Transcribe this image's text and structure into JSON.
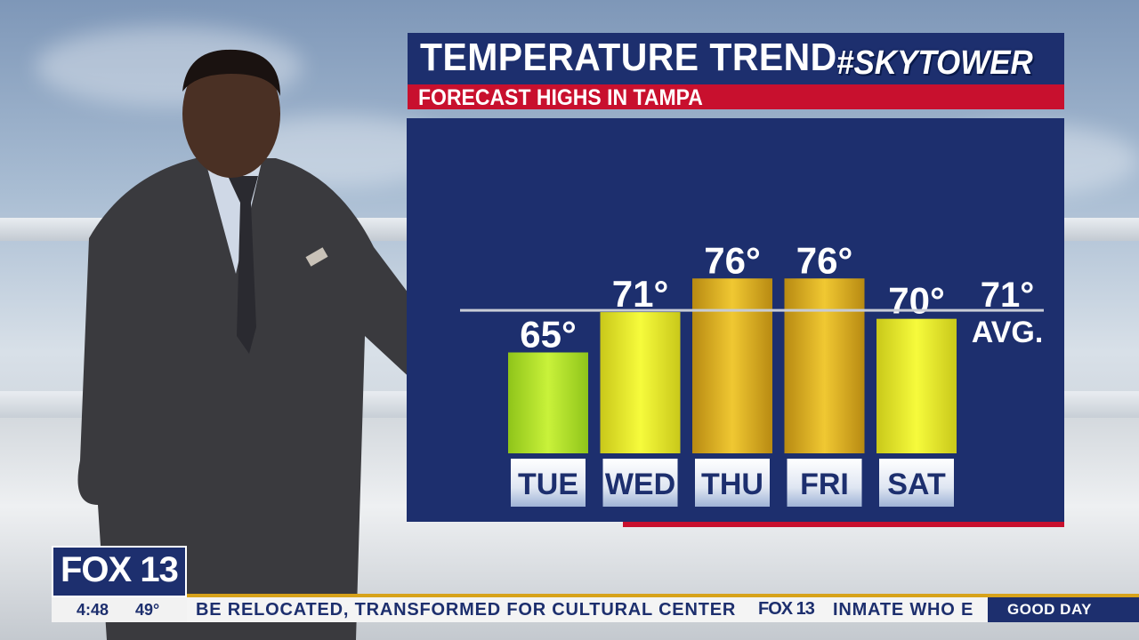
{
  "graphic": {
    "title": "TEMPERATURE TREND",
    "subtitle": "FORECAST HIGHS IN TAMPA",
    "hashtag": "#SKYTOWER",
    "colors": {
      "panel": "#1d2f6e",
      "accent_red": "#c8102e",
      "bar_green": "#b6e62a",
      "bar_yellow": "#e9f01e",
      "bar_gold": "#dcae1f"
    }
  },
  "chart_data": {
    "type": "bar",
    "categories": [
      "TUE",
      "WED",
      "THU",
      "FRI",
      "SAT"
    ],
    "values": [
      65,
      71,
      76,
      76,
      70
    ],
    "value_labels": [
      "65°",
      "71°",
      "76°",
      "76°",
      "70°"
    ],
    "average": {
      "value": 71,
      "label": "71°",
      "caption": "AVG."
    },
    "ylim": [
      50,
      80
    ],
    "grid": false,
    "legend": "none"
  },
  "ticker": {
    "logo": "FOX 13",
    "time": "4:48",
    "temperature": "49°",
    "headline": "BE RELOCATED, TRANSFORMED FOR CULTURAL CENTER",
    "inline_logo": "FOX 13",
    "next_headline": "INMATE WHO E",
    "show": "GOOD DAY"
  }
}
